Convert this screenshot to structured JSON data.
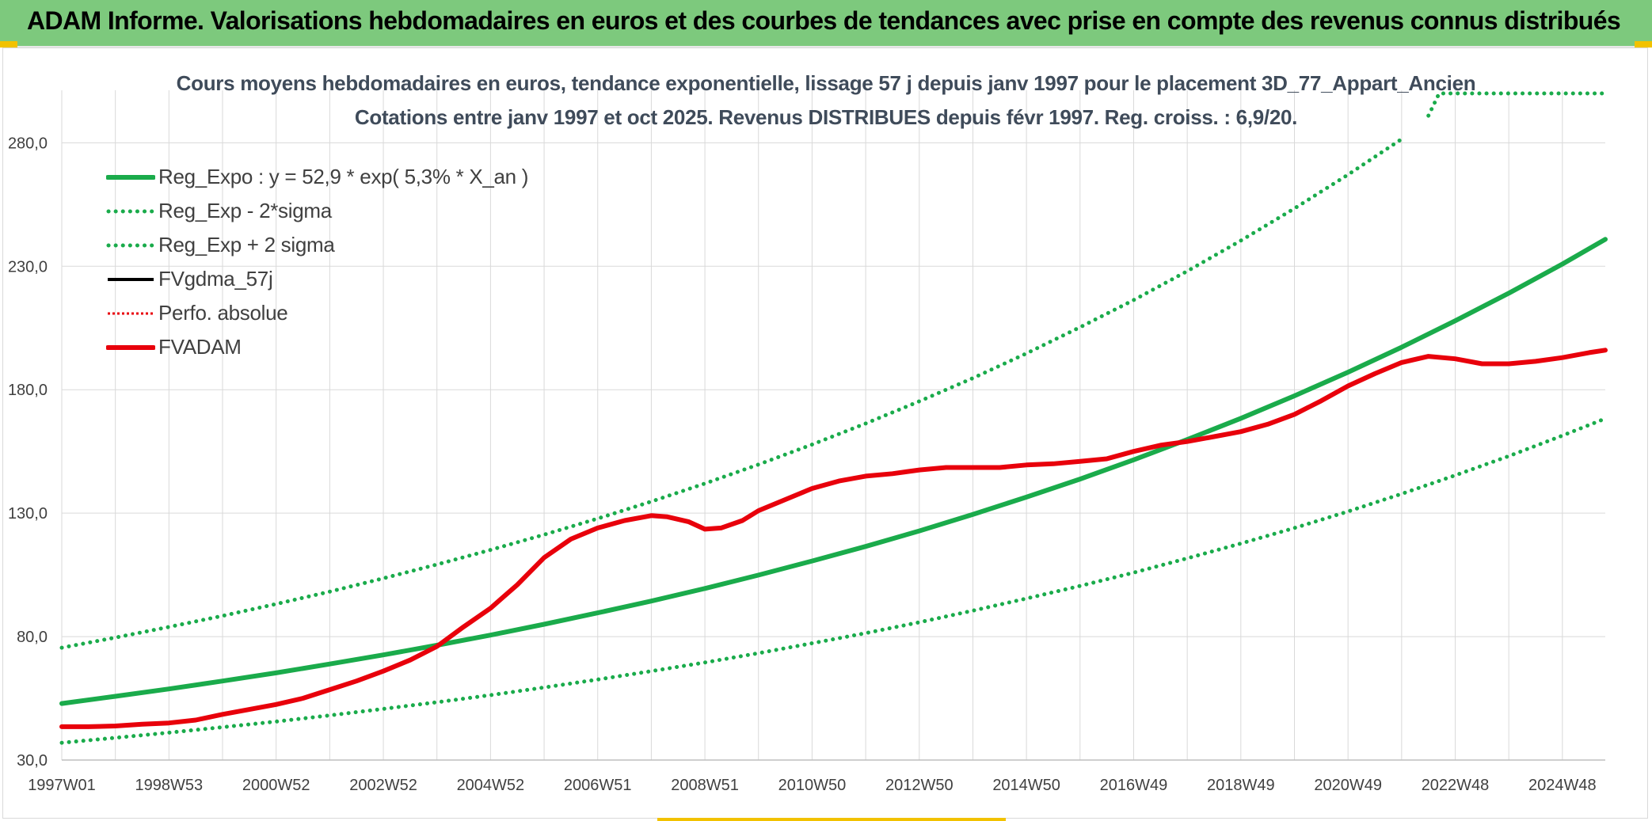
{
  "banner": {
    "title": "ADAM Informe. Valorisations hebdomadaires en euros et des courbes de tendances avec prise en compte des revenus connus distribués"
  },
  "colors": {
    "banner_bg": "#7dc97d",
    "regression": "#1aab4b",
    "fvadam": "#e8000b",
    "perfo": "#e8000b",
    "fvgdma": "#000000",
    "grid": "#d9d9d9",
    "axis_text": "#404040"
  },
  "chart_data": {
    "type": "line",
    "title": "Cours moyens hebdomadaires en euros, tendance exponentielle, lissage 57 j depuis janv 1997 pour le placement 3D_77_Appart_Ancien",
    "subtitle": "Cotations entre janv 1997 et oct 2025. Revenus DISTRIBUES depuis févr 1997. Reg. croiss. : 6,9/20.",
    "xlabel": "",
    "ylabel": "",
    "ylim": [
      30,
      300
    ],
    "xlim": [
      1997.0,
      2025.8
    ],
    "grid": true,
    "legend_position": "top-left",
    "y_ticks": [
      "30,0",
      "80,0",
      "130,0",
      "180,0",
      "230,0",
      "280,0"
    ],
    "y_tick_values": [
      30,
      80,
      130,
      180,
      230,
      280
    ],
    "x_ticks": [
      "1997W01",
      "1998W53",
      "2000W52",
      "2002W52",
      "2004W52",
      "2006W51",
      "2008W51",
      "2010W50",
      "2012W50",
      "2014W50",
      "2016W49",
      "2018W49",
      "2020W49",
      "2022W48",
      "2024W48"
    ],
    "x_tick_values": [
      1997.0,
      1999.0,
      2001.0,
      2003.0,
      2005.0,
      2007.0,
      2009.0,
      2011.0,
      2013.0,
      2015.0,
      2017.0,
      2019.0,
      2021.0,
      2023.0,
      2025.0
    ],
    "series": [
      {
        "name": "Reg_Expo : y = 52,9 * exp( 5,3% *  X_an )",
        "style": "solid",
        "color": "#1aab4b",
        "x": [
          1997.0,
          1998.0,
          1999.0,
          2000.0,
          2001.0,
          2002.0,
          2003.0,
          2004.0,
          2005.0,
          2006.0,
          2007.0,
          2008.0,
          2009.0,
          2010.0,
          2011.0,
          2012.0,
          2013.0,
          2014.0,
          2015.0,
          2016.0,
          2017.0,
          2018.0,
          2019.0,
          2020.0,
          2021.0,
          2022.0,
          2023.0,
          2024.0,
          2025.0,
          2025.8
        ],
        "y": [
          52.9,
          55.8,
          58.8,
          62.0,
          65.3,
          68.9,
          72.6,
          76.5,
          80.6,
          85.0,
          89.6,
          94.4,
          99.5,
          104.9,
          110.6,
          116.5,
          122.8,
          129.5,
          136.5,
          143.8,
          151.6,
          159.8,
          168.4,
          177.5,
          187.1,
          197.2,
          207.9,
          219.1,
          230.9,
          240.9
        ]
      },
      {
        "name": "Reg_Exp - 2*sigma",
        "style": "dotted",
        "color": "#1aab4b",
        "x": [
          1997.0,
          1998.0,
          1999.0,
          2000.0,
          2001.0,
          2002.0,
          2003.0,
          2004.0,
          2005.0,
          2006.0,
          2007.0,
          2008.0,
          2009.0,
          2010.0,
          2011.0,
          2012.0,
          2013.0,
          2014.0,
          2015.0,
          2016.0,
          2017.0,
          2018.0,
          2019.0,
          2020.0,
          2021.0,
          2022.0,
          2023.0,
          2024.0,
          2025.0,
          2025.8
        ],
        "y": [
          37.0,
          39.0,
          41.1,
          43.3,
          45.6,
          48.1,
          50.7,
          53.4,
          56.3,
          59.4,
          62.6,
          66.0,
          69.5,
          73.3,
          77.3,
          81.4,
          85.8,
          90.5,
          95.4,
          100.5,
          105.9,
          111.7,
          117.7,
          124.0,
          130.7,
          137.8,
          145.3,
          153.1,
          161.4,
          168.3
        ]
      },
      {
        "name": "Reg_Exp + 2 sigma",
        "style": "dotted",
        "color": "#1aab4b",
        "x": [
          1997.0,
          1998.0,
          1999.0,
          2000.0,
          2001.0,
          2002.0,
          2003.0,
          2004.0,
          2005.0,
          2006.0,
          2007.0,
          2008.0,
          2009.0,
          2010.0,
          2011.0,
          2012.0,
          2013.0,
          2014.0,
          2015.0,
          2016.0,
          2017.0,
          2018.0,
          2019.0,
          2020.0,
          2021.0,
          2022.0,
          2022.2,
          2022.5,
          2022.7,
          2023.0,
          2024.0,
          2025.0,
          2025.8
        ],
        "y": [
          75.5,
          79.6,
          83.9,
          88.4,
          93.2,
          98.2,
          103.6,
          109.2,
          115.1,
          121.3,
          127.8,
          134.7,
          142.0,
          149.7,
          157.8,
          166.3,
          175.3,
          184.7,
          194.7,
          205.3,
          216.3,
          228.0,
          240.4,
          253.4,
          267.1,
          281.5,
          null,
          291.0,
          300.0,
          300.0,
          300.0,
          300.0,
          300.0
        ]
      },
      {
        "name": "FVgdma_57j",
        "style": "solid",
        "color": "#000000",
        "x": [],
        "y": []
      },
      {
        "name": "Perfo. absolue",
        "style": "dotted",
        "color": "#e8000b",
        "x": [],
        "y": []
      },
      {
        "name": "FVADAM",
        "style": "solid",
        "color": "#e8000b",
        "x": [
          1997.0,
          1997.5,
          1998.0,
          1998.5,
          1999.0,
          1999.5,
          2000.0,
          2000.5,
          2001.0,
          2001.5,
          2002.0,
          2002.5,
          2003.0,
          2003.5,
          2004.0,
          2004.5,
          2005.0,
          2005.5,
          2006.0,
          2006.5,
          2007.0,
          2007.5,
          2008.0,
          2008.3,
          2008.7,
          2009.0,
          2009.3,
          2009.7,
          2010.0,
          2010.5,
          2011.0,
          2011.5,
          2012.0,
          2012.5,
          2013.0,
          2013.5,
          2014.0,
          2014.5,
          2015.0,
          2015.5,
          2016.0,
          2016.5,
          2017.0,
          2017.5,
          2018.0,
          2018.5,
          2019.0,
          2019.5,
          2020.0,
          2020.5,
          2021.0,
          2021.5,
          2022.0,
          2022.5,
          2023.0,
          2023.5,
          2024.0,
          2024.5,
          2025.0,
          2025.5,
          2025.8
        ],
        "y": [
          43.5,
          43.5,
          43.8,
          44.5,
          45.0,
          46.2,
          48.5,
          50.5,
          52.5,
          55.0,
          58.5,
          62.0,
          66.0,
          70.5,
          76.0,
          84.0,
          91.5,
          101.0,
          112.0,
          119.5,
          124.0,
          127.0,
          129.0,
          128.5,
          126.5,
          123.5,
          124.0,
          127.0,
          131.0,
          135.5,
          140.0,
          143.0,
          145.0,
          146.0,
          147.5,
          148.5,
          148.5,
          148.5,
          149.5,
          150.0,
          151.0,
          152.0,
          155.0,
          157.5,
          159.0,
          161.0,
          163.0,
          166.0,
          170.0,
          175.5,
          181.5,
          186.5,
          191.0,
          193.5,
          192.5,
          190.5,
          190.5,
          191.5,
          193.0,
          195.0,
          196.0
        ]
      }
    ]
  }
}
